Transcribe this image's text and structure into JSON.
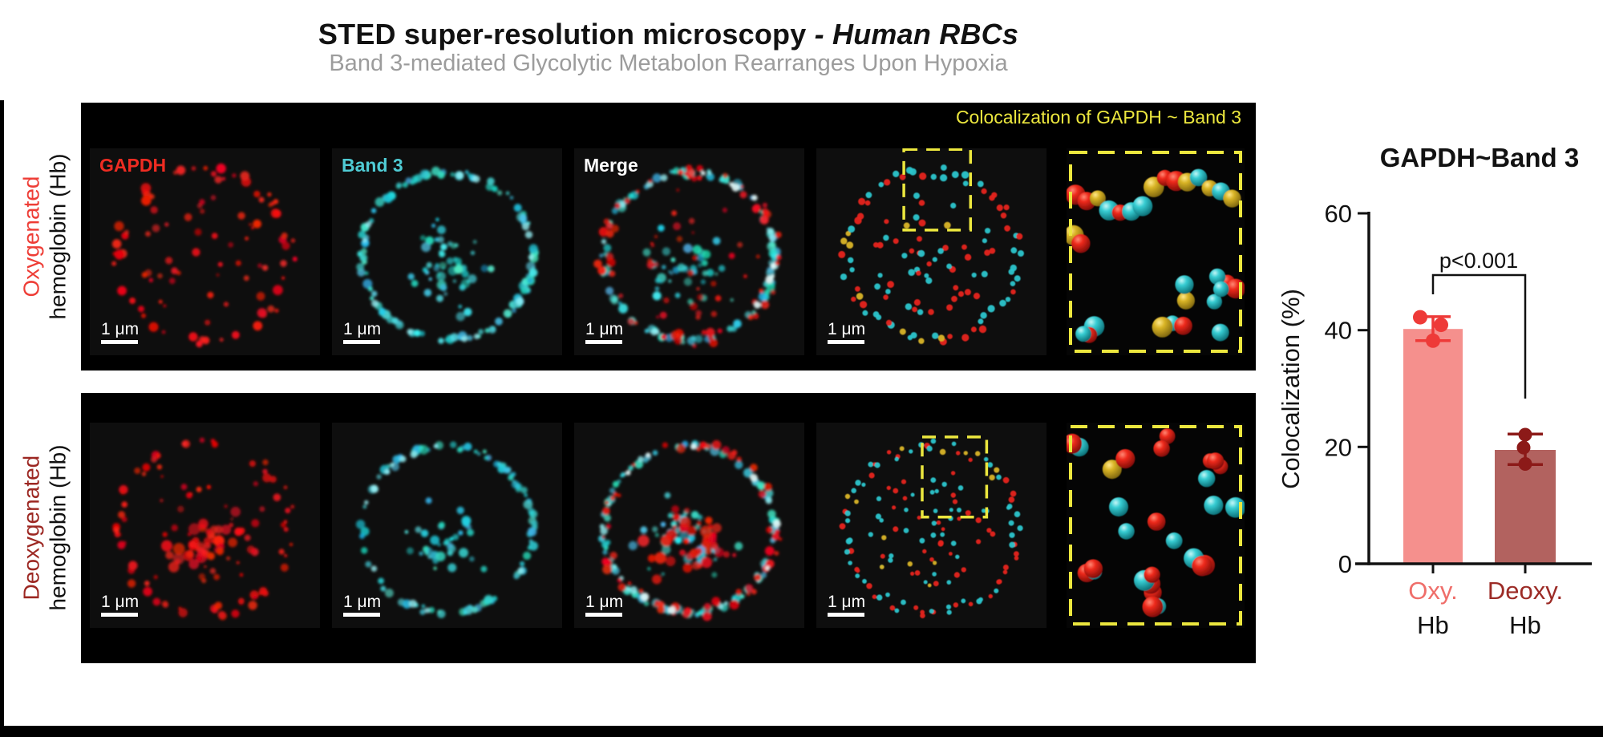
{
  "title": {
    "main": "STED super-resolution microscopy ",
    "emphasis": "- Human RBCs",
    "subtitle": "Band 3-mediated Glycolytic Metabolon Rearranges Upon Hypoxia"
  },
  "colors": {
    "red": "#ee3d36",
    "red_bright": "#ee2c22",
    "dark_red": "#9c2722",
    "cyan": "#4fcbd4",
    "white": "#ffffff",
    "yellow": "#ece73e",
    "dot_red": "#e6231c",
    "dot_cyan": "#2cc5cc",
    "dot_yellow": "#d9b426",
    "merge_white": "#e4fbfb",
    "subtitle_gray": "#9c9c9c",
    "axis": "#111111"
  },
  "scale_bar_label": "1 μm",
  "rows": [
    {
      "label_line1": "Oxygenated",
      "label_line2": "hemoglobin (Hb)",
      "label_color_key": "red",
      "banner": "Colocalization of GAPDH ~ Band 3",
      "panels": [
        {
          "name": "panel-oxy-gapdh",
          "type": "gapdh",
          "label": "GAPDH",
          "label_color_key": "red_bright",
          "scale_bar": true
        },
        {
          "name": "panel-oxy-band3",
          "type": "band3",
          "label": "Band 3",
          "label_color_key": "cyan",
          "scale_bar": true
        },
        {
          "name": "panel-oxy-merge",
          "type": "merge",
          "label": "Merge",
          "label_color_key": "white",
          "scale_bar": true
        },
        {
          "name": "panel-oxy-coloc-dots",
          "type": "dots",
          "scale_bar": true,
          "dash_box": {
            "x": 0.38,
            "y": 0.005,
            "w": 0.29,
            "h": 0.39
          }
        },
        {
          "name": "panel-oxy-coloc-inset",
          "type": "inset"
        }
      ]
    },
    {
      "label_line1": "Deoxygenated",
      "label_line2": "hemoglobin (Hb)",
      "label_color_key": "dark_red",
      "panels": [
        {
          "name": "panel-deoxy-gapdh",
          "type": "gapdh",
          "scale_bar": true
        },
        {
          "name": "panel-deoxy-band3",
          "type": "band3",
          "scale_bar": true
        },
        {
          "name": "panel-deoxy-merge",
          "type": "merge",
          "scale_bar": true
        },
        {
          "name": "panel-deoxy-coloc-dots",
          "type": "dots",
          "scale_bar": true,
          "dash_box": {
            "x": 0.46,
            "y": 0.07,
            "w": 0.28,
            "h": 0.39
          }
        },
        {
          "name": "panel-deoxy-coloc-inset",
          "type": "inset"
        }
      ]
    }
  ],
  "chart_data": {
    "type": "bar",
    "title": "GAPDH~Band 3",
    "ylabel": "Colocalization (%)",
    "xlabel": "",
    "ylim": [
      0,
      60
    ],
    "yticks": [
      0,
      20,
      40,
      60
    ],
    "grid": false,
    "legend": "none",
    "categories": [
      {
        "line1": "Oxy.",
        "line2": "Hb"
      },
      {
        "line1": "Deoxy.",
        "line2": "Hb"
      }
    ],
    "values": [
      40.2,
      19.5
    ],
    "error_upper": [
      42.3,
      22.2
    ],
    "error_lower": [
      38.2,
      17.0
    ],
    "points": [
      [
        42.2,
        40.9,
        38.2
      ],
      [
        22.1,
        19.9,
        17.1
      ]
    ],
    "significance": "p<0.001",
    "bar_colors": [
      "#F5908D",
      "#B2625F"
    ],
    "point_colors": [
      "#EE3A38",
      "#8C1A18"
    ],
    "category_label_colors": [
      "#EF6E6A",
      "#9C2B26"
    ]
  }
}
